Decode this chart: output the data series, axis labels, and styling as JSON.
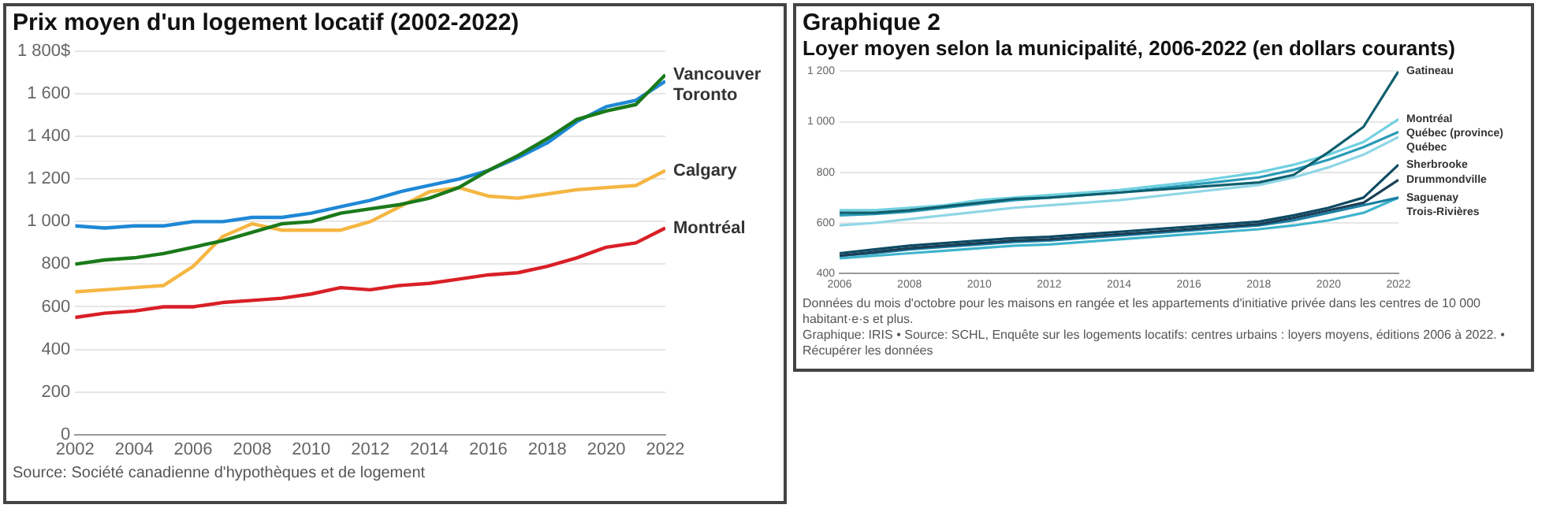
{
  "chart_data": [
    {
      "type": "line",
      "title": "Prix moyen d'un logement locatif (2002-2022)",
      "x": [
        2002,
        2003,
        2004,
        2005,
        2006,
        2007,
        2008,
        2009,
        2010,
        2011,
        2012,
        2013,
        2014,
        2015,
        2016,
        2017,
        2018,
        2019,
        2020,
        2021,
        2022
      ],
      "series": [
        {
          "name": "Vancouver",
          "color": "#1a7a1a",
          "values": [
            800,
            820,
            830,
            850,
            880,
            910,
            950,
            990,
            1000,
            1040,
            1060,
            1080,
            1110,
            1160,
            1240,
            1310,
            1390,
            1480,
            1520,
            1550,
            1690
          ]
        },
        {
          "name": "Toronto",
          "color": "#1f88d6",
          "values": [
            980,
            970,
            980,
            980,
            1000,
            1000,
            1020,
            1020,
            1040,
            1070,
            1100,
            1140,
            1170,
            1200,
            1240,
            1300,
            1370,
            1470,
            1540,
            1570,
            1660
          ]
        },
        {
          "name": "Calgary",
          "color": "#f5b642",
          "values": [
            670,
            680,
            690,
            700,
            790,
            930,
            990,
            960,
            960,
            960,
            1000,
            1070,
            1140,
            1160,
            1120,
            1110,
            1130,
            1150,
            1160,
            1170,
            1240
          ]
        },
        {
          "name": "Montréal",
          "color": "#d91f26",
          "values": [
            550,
            570,
            580,
            600,
            600,
            620,
            630,
            640,
            660,
            690,
            680,
            700,
            710,
            730,
            750,
            760,
            790,
            830,
            880,
            900,
            970
          ]
        }
      ],
      "xlim": [
        2002,
        2022
      ],
      "xticks": [
        2002,
        2004,
        2006,
        2008,
        2010,
        2012,
        2014,
        2016,
        2018,
        2020,
        2022
      ],
      "ylim": [
        0,
        1800
      ],
      "yticks": [
        0,
        200,
        400,
        600,
        800,
        {
          "value": 1000,
          "label": "1 000"
        },
        {
          "value": 1200,
          "label": "1 200"
        },
        {
          "value": 1400,
          "label": "1 400"
        },
        {
          "value": 1600,
          "label": "1 600"
        },
        {
          "value": 1800,
          "label": "1 800$"
        }
      ],
      "grid": "y",
      "legend": false,
      "marker": "none",
      "line_style": "solid",
      "annotations": [
        "Source: Société canadienne d'hypothèques et de logement"
      ]
    },
    {
      "type": "line",
      "title": "Graphique 2",
      "subtitle": "Loyer moyen selon la municipalité, 2006-2022 (en dollars courants)",
      "x": [
        2006,
        2007,
        2008,
        2009,
        2010,
        2011,
        2012,
        2013,
        2014,
        2015,
        2016,
        2017,
        2018,
        2019,
        2020,
        2021,
        2022
      ],
      "series": [
        {
          "name": "Gatineau",
          "color": "#0f5f6e",
          "values": [
            640,
            640,
            650,
            665,
            680,
            695,
            700,
            710,
            720,
            730,
            740,
            750,
            760,
            790,
            880,
            980,
            1200
          ]
        },
        {
          "name": "Montréal",
          "color": "#6fd0e0",
          "values": [
            650,
            650,
            660,
            670,
            690,
            700,
            710,
            720,
            730,
            745,
            760,
            780,
            800,
            830,
            870,
            920,
            1010
          ]
        },
        {
          "name": "Québec (province)",
          "color": "#2a9bb8",
          "values": [
            630,
            635,
            645,
            660,
            675,
            690,
            700,
            710,
            720,
            735,
            750,
            765,
            780,
            810,
            850,
            900,
            960
          ]
        },
        {
          "name": "Québec",
          "color": "#8fd6e6",
          "values": [
            590,
            600,
            615,
            630,
            645,
            660,
            670,
            680,
            690,
            705,
            720,
            735,
            750,
            780,
            820,
            870,
            940
          ]
        },
        {
          "name": "Sherbrooke",
          "color": "#0d4a63",
          "values": [
            480,
            495,
            510,
            520,
            530,
            540,
            545,
            555,
            565,
            575,
            585,
            595,
            605,
            630,
            660,
            700,
            830
          ]
        },
        {
          "name": "Drummondville",
          "color": "#1b3f57",
          "values": [
            470,
            485,
            500,
            510,
            520,
            530,
            535,
            545,
            555,
            565,
            575,
            585,
            595,
            620,
            650,
            680,
            770
          ]
        },
        {
          "name": "Saguenay",
          "color": "#1a7fa3",
          "values": [
            470,
            480,
            495,
            505,
            515,
            525,
            530,
            540,
            550,
            560,
            570,
            580,
            590,
            610,
            640,
            670,
            700
          ]
        },
        {
          "name": "Trois-Rivières",
          "color": "#3fb3cc",
          "values": [
            460,
            470,
            480,
            490,
            500,
            510,
            515,
            525,
            535,
            545,
            555,
            565,
            575,
            590,
            610,
            640,
            700
          ]
        }
      ],
      "xlim": [
        2006,
        2022
      ],
      "xticks": [
        2006,
        2008,
        2010,
        2012,
        2014,
        2016,
        2018,
        2020,
        2022
      ],
      "ylim": [
        400,
        1200
      ],
      "yticks": [
        400,
        600,
        800,
        {
          "value": 1000,
          "label": "1 000"
        },
        {
          "value": 1200,
          "label": "1 200"
        }
      ],
      "grid": "y",
      "legend": false,
      "marker": "none",
      "line_style": "solid",
      "annotations": [
        "Données du mois d'octobre pour les maisons en rangée et les appartements d'initiative privée dans les centres de 10 000 habitant·e·s et plus.",
        "Graphique: IRIS • Source: SCHL, Enquête sur les logements locatifs: centres urbains : loyers moyens, éditions 2006 à 2022. • Récupérer les données"
      ]
    }
  ]
}
